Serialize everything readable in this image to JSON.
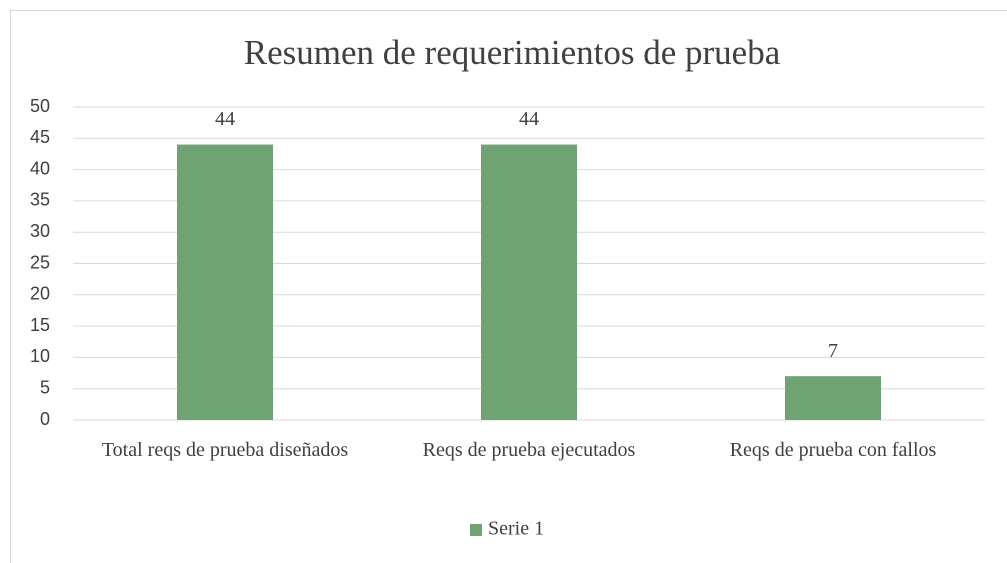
{
  "chart_data": {
    "type": "bar",
    "title": "Resumen de requerimientos de prueba",
    "categories": [
      "Total reqs de prueba diseñados",
      "Reqs de prueba ejecutados",
      "Reqs de prueba con fallos"
    ],
    "series": [
      {
        "name": "Serie 1",
        "color": "#70a373",
        "values": [
          44,
          44,
          7
        ]
      }
    ],
    "ylim": [
      0,
      50
    ],
    "yticks": [
      0,
      5,
      10,
      15,
      20,
      25,
      30,
      35,
      40,
      45,
      50
    ],
    "grid": true,
    "legend": "bottom",
    "data_labels": true
  }
}
